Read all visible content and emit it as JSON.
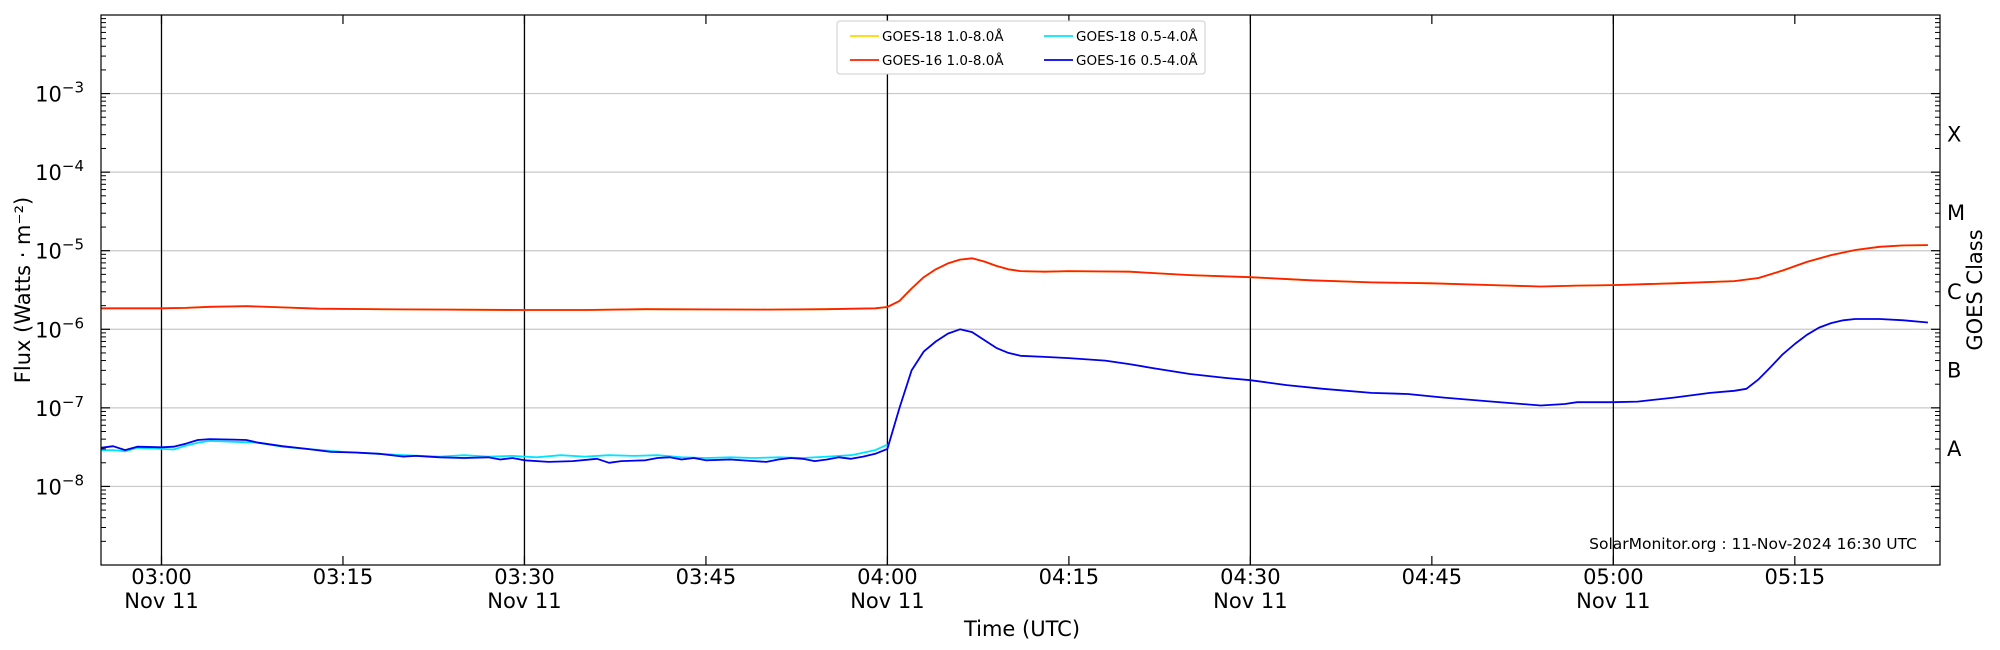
{
  "chart_data": {
    "type": "line",
    "xlabel": "Time (UTC)",
    "ylabel": "Flux (Watts · m⁻²)",
    "ylabel_right": "GOES Class",
    "y_scale": "log",
    "ylim": [
      1e-09,
      0.01
    ],
    "xlim": [
      "02:55",
      "05:27"
    ],
    "grid": "horizontal",
    "legend_position": "top-center",
    "credit": "SolarMonitor.org : 11-Nov-2024 16:30 UTC",
    "x_ticks": [
      {
        "t": "03:00",
        "label": "03:00",
        "sub": "Nov 11"
      },
      {
        "t": "03:15",
        "label": "03:15",
        "sub": ""
      },
      {
        "t": "03:30",
        "label": "03:30",
        "sub": "Nov 11"
      },
      {
        "t": "03:45",
        "label": "03:45",
        "sub": ""
      },
      {
        "t": "04:00",
        "label": "04:00",
        "sub": "Nov 11"
      },
      {
        "t": "04:15",
        "label": "04:15",
        "sub": ""
      },
      {
        "t": "04:30",
        "label": "04:30",
        "sub": "Nov 11"
      },
      {
        "t": "04:45",
        "label": "04:45",
        "sub": ""
      },
      {
        "t": "05:00",
        "label": "05:00",
        "sub": "Nov 11"
      },
      {
        "t": "05:15",
        "label": "05:15",
        "sub": ""
      }
    ],
    "y_ticks": [
      {
        "value": 1e-08,
        "base": "10",
        "exp": "−8"
      },
      {
        "value": 1e-07,
        "base": "10",
        "exp": "−7"
      },
      {
        "value": 1e-06,
        "base": "10",
        "exp": "−6"
      },
      {
        "value": 1e-05,
        "base": "10",
        "exp": "−5"
      },
      {
        "value": 0.0001,
        "base": "10",
        "exp": "−4"
      },
      {
        "value": 0.001,
        "base": "10",
        "exp": "−3"
      }
    ],
    "class_labels": [
      {
        "label": "A",
        "value": 3e-08
      },
      {
        "label": "B",
        "value": 3e-07
      },
      {
        "label": "C",
        "value": 3e-06
      },
      {
        "label": "M",
        "value": 3e-05
      },
      {
        "label": "X",
        "value": 0.0003
      }
    ],
    "day_lines": [
      "03:00",
      "03:30",
      "04:00",
      "04:30",
      "05:00"
    ],
    "legend": [
      {
        "name": "GOES-18 1.0-8.0Å",
        "color": "#ffd700"
      },
      {
        "name": "GOES-18 0.5-4.0Å",
        "color": "#00e5ff"
      },
      {
        "name": "GOES-16 1.0-8.0Å",
        "color": "#ff2000"
      },
      {
        "name": "GOES-16 0.5-4.0Å",
        "color": "#0000ee"
      }
    ],
    "series": [
      {
        "name": "GOES-18 1.0-8.0Å",
        "color": "#ffd700",
        "points": [
          [
            "02:55",
            1.85e-06
          ],
          [
            "03:00",
            1.85e-06
          ],
          [
            "03:02",
            1.87e-06
          ],
          [
            "03:04",
            1.93e-06
          ],
          [
            "03:07",
            1.97e-06
          ],
          [
            "03:10",
            1.9e-06
          ],
          [
            "03:13",
            1.83e-06
          ],
          [
            "03:20",
            1.79e-06
          ],
          [
            "03:30",
            1.76e-06
          ],
          [
            "03:35",
            1.76e-06
          ],
          [
            "03:40",
            1.8e-06
          ],
          [
            "03:50",
            1.78e-06
          ],
          [
            "03:55",
            1.8e-06
          ],
          [
            "03:59",
            1.85e-06
          ],
          [
            "04:00",
            1.92e-06
          ],
          [
            "04:01",
            2.3e-06
          ],
          [
            "04:02",
            3.3e-06
          ],
          [
            "04:03",
            4.6e-06
          ],
          [
            "04:04",
            5.8e-06
          ],
          [
            "04:05",
            6.9e-06
          ],
          [
            "04:06",
            7.7e-06
          ],
          [
            "04:07",
            8e-06
          ],
          [
            "04:08",
            7.3e-06
          ],
          [
            "04:09",
            6.4e-06
          ],
          [
            "04:10",
            5.8e-06
          ],
          [
            "04:11",
            5.5e-06
          ],
          [
            "04:13",
            5.4e-06
          ],
          [
            "04:15",
            5.5e-06
          ],
          [
            "04:20",
            5.4e-06
          ],
          [
            "04:25",
            4.9e-06
          ],
          [
            "04:30",
            4.6e-06
          ],
          [
            "04:35",
            4.2e-06
          ],
          [
            "04:40",
            3.95e-06
          ],
          [
            "04:45",
            3.85e-06
          ],
          [
            "04:50",
            3.65e-06
          ],
          [
            "04:54",
            3.5e-06
          ],
          [
            "04:57",
            3.6e-06
          ],
          [
            "05:00",
            3.65e-06
          ],
          [
            "05:05",
            3.85e-06
          ],
          [
            "05:10",
            4.1e-06
          ],
          [
            "05:12",
            4.5e-06
          ],
          [
            "05:14",
            5.6e-06
          ],
          [
            "05:16",
            7.2e-06
          ],
          [
            "05:18",
            8.8e-06
          ],
          [
            "05:20",
            1.02e-05
          ],
          [
            "05:22",
            1.12e-05
          ],
          [
            "05:24",
            1.17e-05
          ],
          [
            "05:26",
            1.18e-05
          ]
        ]
      },
      {
        "name": "GOES-18 0.5-4.0Å",
        "color": "#00e5ff",
        "points": [
          [
            "02:55",
            2.9e-08
          ],
          [
            "02:56",
            2.9e-08
          ],
          [
            "02:57",
            2.8e-08
          ],
          [
            "02:58",
            3.1e-08
          ],
          [
            "03:00",
            3e-08
          ],
          [
            "03:01",
            2.95e-08
          ],
          [
            "03:02",
            3.3e-08
          ],
          [
            "03:03",
            3.6e-08
          ],
          [
            "03:04",
            3.8e-08
          ],
          [
            "03:06",
            3.7e-08
          ],
          [
            "03:08",
            3.6e-08
          ],
          [
            "03:10",
            3.2e-08
          ],
          [
            "03:12",
            3e-08
          ],
          [
            "03:15",
            2.75e-08
          ],
          [
            "03:18",
            2.6e-08
          ],
          [
            "03:20",
            2.5e-08
          ],
          [
            "03:23",
            2.4e-08
          ],
          [
            "03:25",
            2.5e-08
          ],
          [
            "03:27",
            2.4e-08
          ],
          [
            "03:29",
            2.45e-08
          ],
          [
            "03:31",
            2.35e-08
          ],
          [
            "03:33",
            2.5e-08
          ],
          [
            "03:35",
            2.4e-08
          ],
          [
            "03:37",
            2.5e-08
          ],
          [
            "03:39",
            2.45e-08
          ],
          [
            "03:41",
            2.5e-08
          ],
          [
            "03:43",
            2.35e-08
          ],
          [
            "03:45",
            2.3e-08
          ],
          [
            "03:47",
            2.35e-08
          ],
          [
            "03:49",
            2.3e-08
          ],
          [
            "03:51",
            2.35e-08
          ],
          [
            "03:53",
            2.3e-08
          ],
          [
            "03:55",
            2.4e-08
          ],
          [
            "03:57",
            2.5e-08
          ],
          [
            "03:59",
            2.9e-08
          ],
          [
            "04:00",
            3.4e-08
          ]
        ]
      },
      {
        "name": "GOES-16 1.0-8.0Å",
        "color": "#ff2000",
        "points": [
          [
            "02:55",
            1.85e-06
          ],
          [
            "03:00",
            1.85e-06
          ],
          [
            "03:02",
            1.87e-06
          ],
          [
            "03:04",
            1.93e-06
          ],
          [
            "03:07",
            1.97e-06
          ],
          [
            "03:10",
            1.9e-06
          ],
          [
            "03:13",
            1.83e-06
          ],
          [
            "03:20",
            1.79e-06
          ],
          [
            "03:30",
            1.76e-06
          ],
          [
            "03:35",
            1.76e-06
          ],
          [
            "03:40",
            1.8e-06
          ],
          [
            "03:50",
            1.78e-06
          ],
          [
            "03:55",
            1.8e-06
          ],
          [
            "03:59",
            1.85e-06
          ],
          [
            "04:00",
            1.92e-06
          ],
          [
            "04:01",
            2.3e-06
          ],
          [
            "04:02",
            3.3e-06
          ],
          [
            "04:03",
            4.6e-06
          ],
          [
            "04:04",
            5.8e-06
          ],
          [
            "04:05",
            6.9e-06
          ],
          [
            "04:06",
            7.7e-06
          ],
          [
            "04:07",
            8e-06
          ],
          [
            "04:08",
            7.3e-06
          ],
          [
            "04:09",
            6.4e-06
          ],
          [
            "04:10",
            5.8e-06
          ],
          [
            "04:11",
            5.5e-06
          ],
          [
            "04:13",
            5.4e-06
          ],
          [
            "04:15",
            5.5e-06
          ],
          [
            "04:20",
            5.4e-06
          ],
          [
            "04:25",
            4.9e-06
          ],
          [
            "04:30",
            4.6e-06
          ],
          [
            "04:35",
            4.2e-06
          ],
          [
            "04:40",
            3.95e-06
          ],
          [
            "04:45",
            3.85e-06
          ],
          [
            "04:50",
            3.65e-06
          ],
          [
            "04:54",
            3.5e-06
          ],
          [
            "04:57",
            3.6e-06
          ],
          [
            "05:00",
            3.65e-06
          ],
          [
            "05:05",
            3.85e-06
          ],
          [
            "05:10",
            4.1e-06
          ],
          [
            "05:12",
            4.5e-06
          ],
          [
            "05:14",
            5.6e-06
          ],
          [
            "05:16",
            7.2e-06
          ],
          [
            "05:18",
            8.8e-06
          ],
          [
            "05:20",
            1.02e-05
          ],
          [
            "05:22",
            1.12e-05
          ],
          [
            "05:24",
            1.17e-05
          ],
          [
            "05:26",
            1.18e-05
          ]
        ]
      },
      {
        "name": "GOES-16 0.5-4.0Å",
        "color": "#0000ee",
        "points": [
          [
            "02:55",
            3.1e-08
          ],
          [
            "02:56",
            3.25e-08
          ],
          [
            "02:57",
            2.9e-08
          ],
          [
            "02:58",
            3.2e-08
          ],
          [
            "03:00",
            3.15e-08
          ],
          [
            "03:01",
            3.2e-08
          ],
          [
            "03:02",
            3.5e-08
          ],
          [
            "03:03",
            3.9e-08
          ],
          [
            "03:04",
            4e-08
          ],
          [
            "03:06",
            3.95e-08
          ],
          [
            "03:07",
            3.9e-08
          ],
          [
            "03:08",
            3.6e-08
          ],
          [
            "03:10",
            3.25e-08
          ],
          [
            "03:12",
            3e-08
          ],
          [
            "03:14",
            2.75e-08
          ],
          [
            "03:16",
            2.7e-08
          ],
          [
            "03:18",
            2.6e-08
          ],
          [
            "03:20",
            2.4e-08
          ],
          [
            "03:21",
            2.45e-08
          ],
          [
            "03:23",
            2.35e-08
          ],
          [
            "03:25",
            2.3e-08
          ],
          [
            "03:27",
            2.35e-08
          ],
          [
            "03:28",
            2.2e-08
          ],
          [
            "03:29",
            2.3e-08
          ],
          [
            "03:30",
            2.15e-08
          ],
          [
            "03:32",
            2.05e-08
          ],
          [
            "03:34",
            2.1e-08
          ],
          [
            "03:36",
            2.25e-08
          ],
          [
            "03:37",
            2e-08
          ],
          [
            "03:38",
            2.1e-08
          ],
          [
            "03:40",
            2.15e-08
          ],
          [
            "03:41",
            2.3e-08
          ],
          [
            "03:42",
            2.35e-08
          ],
          [
            "03:43",
            2.2e-08
          ],
          [
            "03:44",
            2.3e-08
          ],
          [
            "03:45",
            2.15e-08
          ],
          [
            "03:47",
            2.2e-08
          ],
          [
            "03:49",
            2.1e-08
          ],
          [
            "03:50",
            2.05e-08
          ],
          [
            "03:51",
            2.2e-08
          ],
          [
            "03:52",
            2.3e-08
          ],
          [
            "03:53",
            2.25e-08
          ],
          [
            "03:54",
            2.1e-08
          ],
          [
            "03:55",
            2.2e-08
          ],
          [
            "03:56",
            2.35e-08
          ],
          [
            "03:57",
            2.25e-08
          ],
          [
            "03:58",
            2.4e-08
          ],
          [
            "03:59",
            2.6e-08
          ],
          [
            "04:00",
            3e-08
          ],
          [
            "04:01",
            1e-07
          ],
          [
            "04:02",
            3e-07
          ],
          [
            "04:03",
            5.2e-07
          ],
          [
            "04:04",
            7e-07
          ],
          [
            "04:05",
            8.8e-07
          ],
          [
            "04:06",
            1e-06
          ],
          [
            "04:07",
            9.2e-07
          ],
          [
            "04:08",
            7.3e-07
          ],
          [
            "04:09",
            5.8e-07
          ],
          [
            "04:10",
            5e-07
          ],
          [
            "04:11",
            4.6e-07
          ],
          [
            "04:13",
            4.45e-07
          ],
          [
            "04:15",
            4.3e-07
          ],
          [
            "04:18",
            4e-07
          ],
          [
            "04:20",
            3.6e-07
          ],
          [
            "04:22",
            3.2e-07
          ],
          [
            "04:25",
            2.7e-07
          ],
          [
            "04:28",
            2.4e-07
          ],
          [
            "04:30",
            2.25e-07
          ],
          [
            "04:33",
            1.95e-07
          ],
          [
            "04:36",
            1.75e-07
          ],
          [
            "04:40",
            1.55e-07
          ],
          [
            "04:43",
            1.5e-07
          ],
          [
            "04:46",
            1.35e-07
          ],
          [
            "04:50",
            1.2e-07
          ],
          [
            "04:54",
            1.07e-07
          ],
          [
            "04:56",
            1.12e-07
          ],
          [
            "04:57",
            1.18e-07
          ],
          [
            "05:00",
            1.18e-07
          ],
          [
            "05:02",
            1.2e-07
          ],
          [
            "05:05",
            1.35e-07
          ],
          [
            "05:08",
            1.55e-07
          ],
          [
            "05:10",
            1.65e-07
          ],
          [
            "05:11",
            1.75e-07
          ],
          [
            "05:12",
            2.3e-07
          ],
          [
            "05:13",
            3.3e-07
          ],
          [
            "05:14",
            4.8e-07
          ],
          [
            "05:15",
            6.5e-07
          ],
          [
            "05:16",
            8.5e-07
          ],
          [
            "05:17",
            1.05e-06
          ],
          [
            "05:18",
            1.2e-06
          ],
          [
            "05:19",
            1.3e-06
          ],
          [
            "05:20",
            1.35e-06
          ],
          [
            "05:22",
            1.35e-06
          ],
          [
            "05:24",
            1.3e-06
          ],
          [
            "05:26",
            1.22e-06
          ]
        ]
      }
    ]
  }
}
